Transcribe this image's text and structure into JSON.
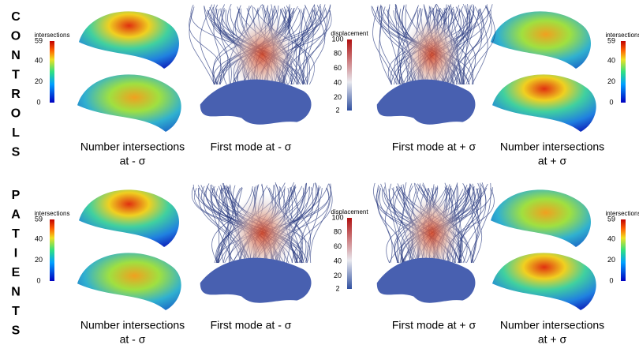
{
  "rows": [
    {
      "label": "CONTROLS",
      "captions": [
        [
          "Number intersections",
          "at - σ"
        ],
        [
          "First mode at - σ"
        ],
        [
          "First mode at + σ"
        ],
        [
          "Number intersections",
          "at + σ"
        ]
      ],
      "colorbars": [
        {
          "title": "intersections",
          "ticks": [
            59,
            40,
            20,
            0
          ]
        },
        {
          "title": "displacement",
          "ticks": [
            100,
            80,
            60,
            40,
            20,
            2
          ]
        },
        {
          "title": "intersections",
          "ticks": [
            59,
            40,
            20,
            0
          ]
        }
      ]
    },
    {
      "label": "PATIENTS",
      "captions": [
        [
          "Number intersections",
          "at - σ"
        ],
        [
          "First mode at - σ"
        ],
        [
          "First mode at + σ"
        ],
        [
          "Number intersections",
          "at + σ"
        ]
      ],
      "colorbars": [
        {
          "title": "intersections",
          "ticks": [
            59,
            40,
            20,
            0
          ]
        },
        {
          "title": "displacement",
          "ticks": [
            100,
            80,
            60,
            40,
            20,
            2
          ]
        },
        {
          "title": "intersections",
          "ticks": [
            59,
            40,
            20,
            0
          ]
        }
      ]
    }
  ]
}
